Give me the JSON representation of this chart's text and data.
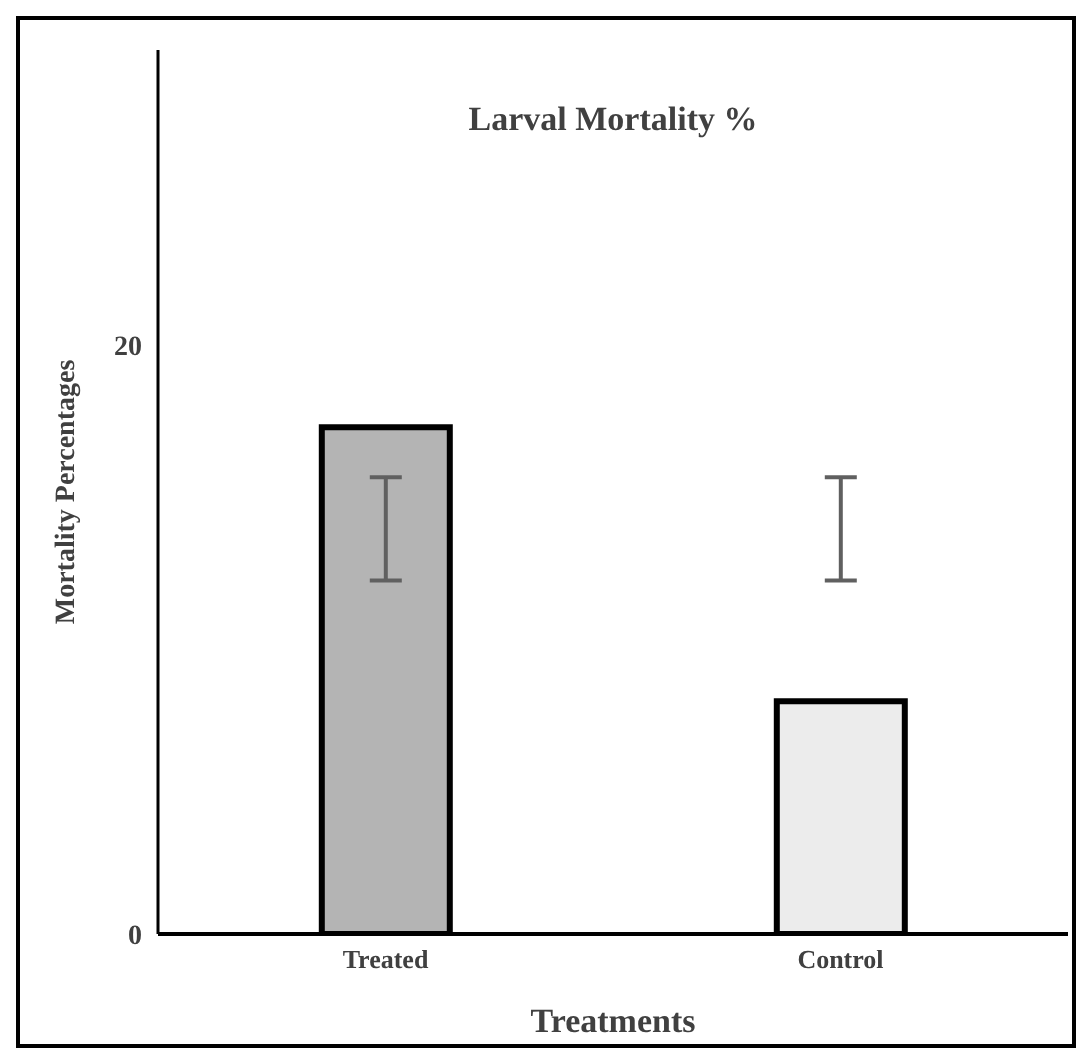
{
  "chart_data": {
    "type": "bar",
    "title": "Larval Mortality %",
    "xlabel": "Treatments",
    "ylabel": "Mortality Percentages",
    "categories": [
      "Treated",
      "Control"
    ],
    "values": [
      17.2,
      7.9
    ],
    "colors": [
      "#b4b4b4",
      "#ececec"
    ],
    "errors": [
      [
        12,
        15.5
      ],
      [
        12,
        15.5
      ]
    ],
    "ylim": [
      0,
      30
    ],
    "yticks": [
      0,
      20
    ],
    "grid": false,
    "legend": false
  }
}
